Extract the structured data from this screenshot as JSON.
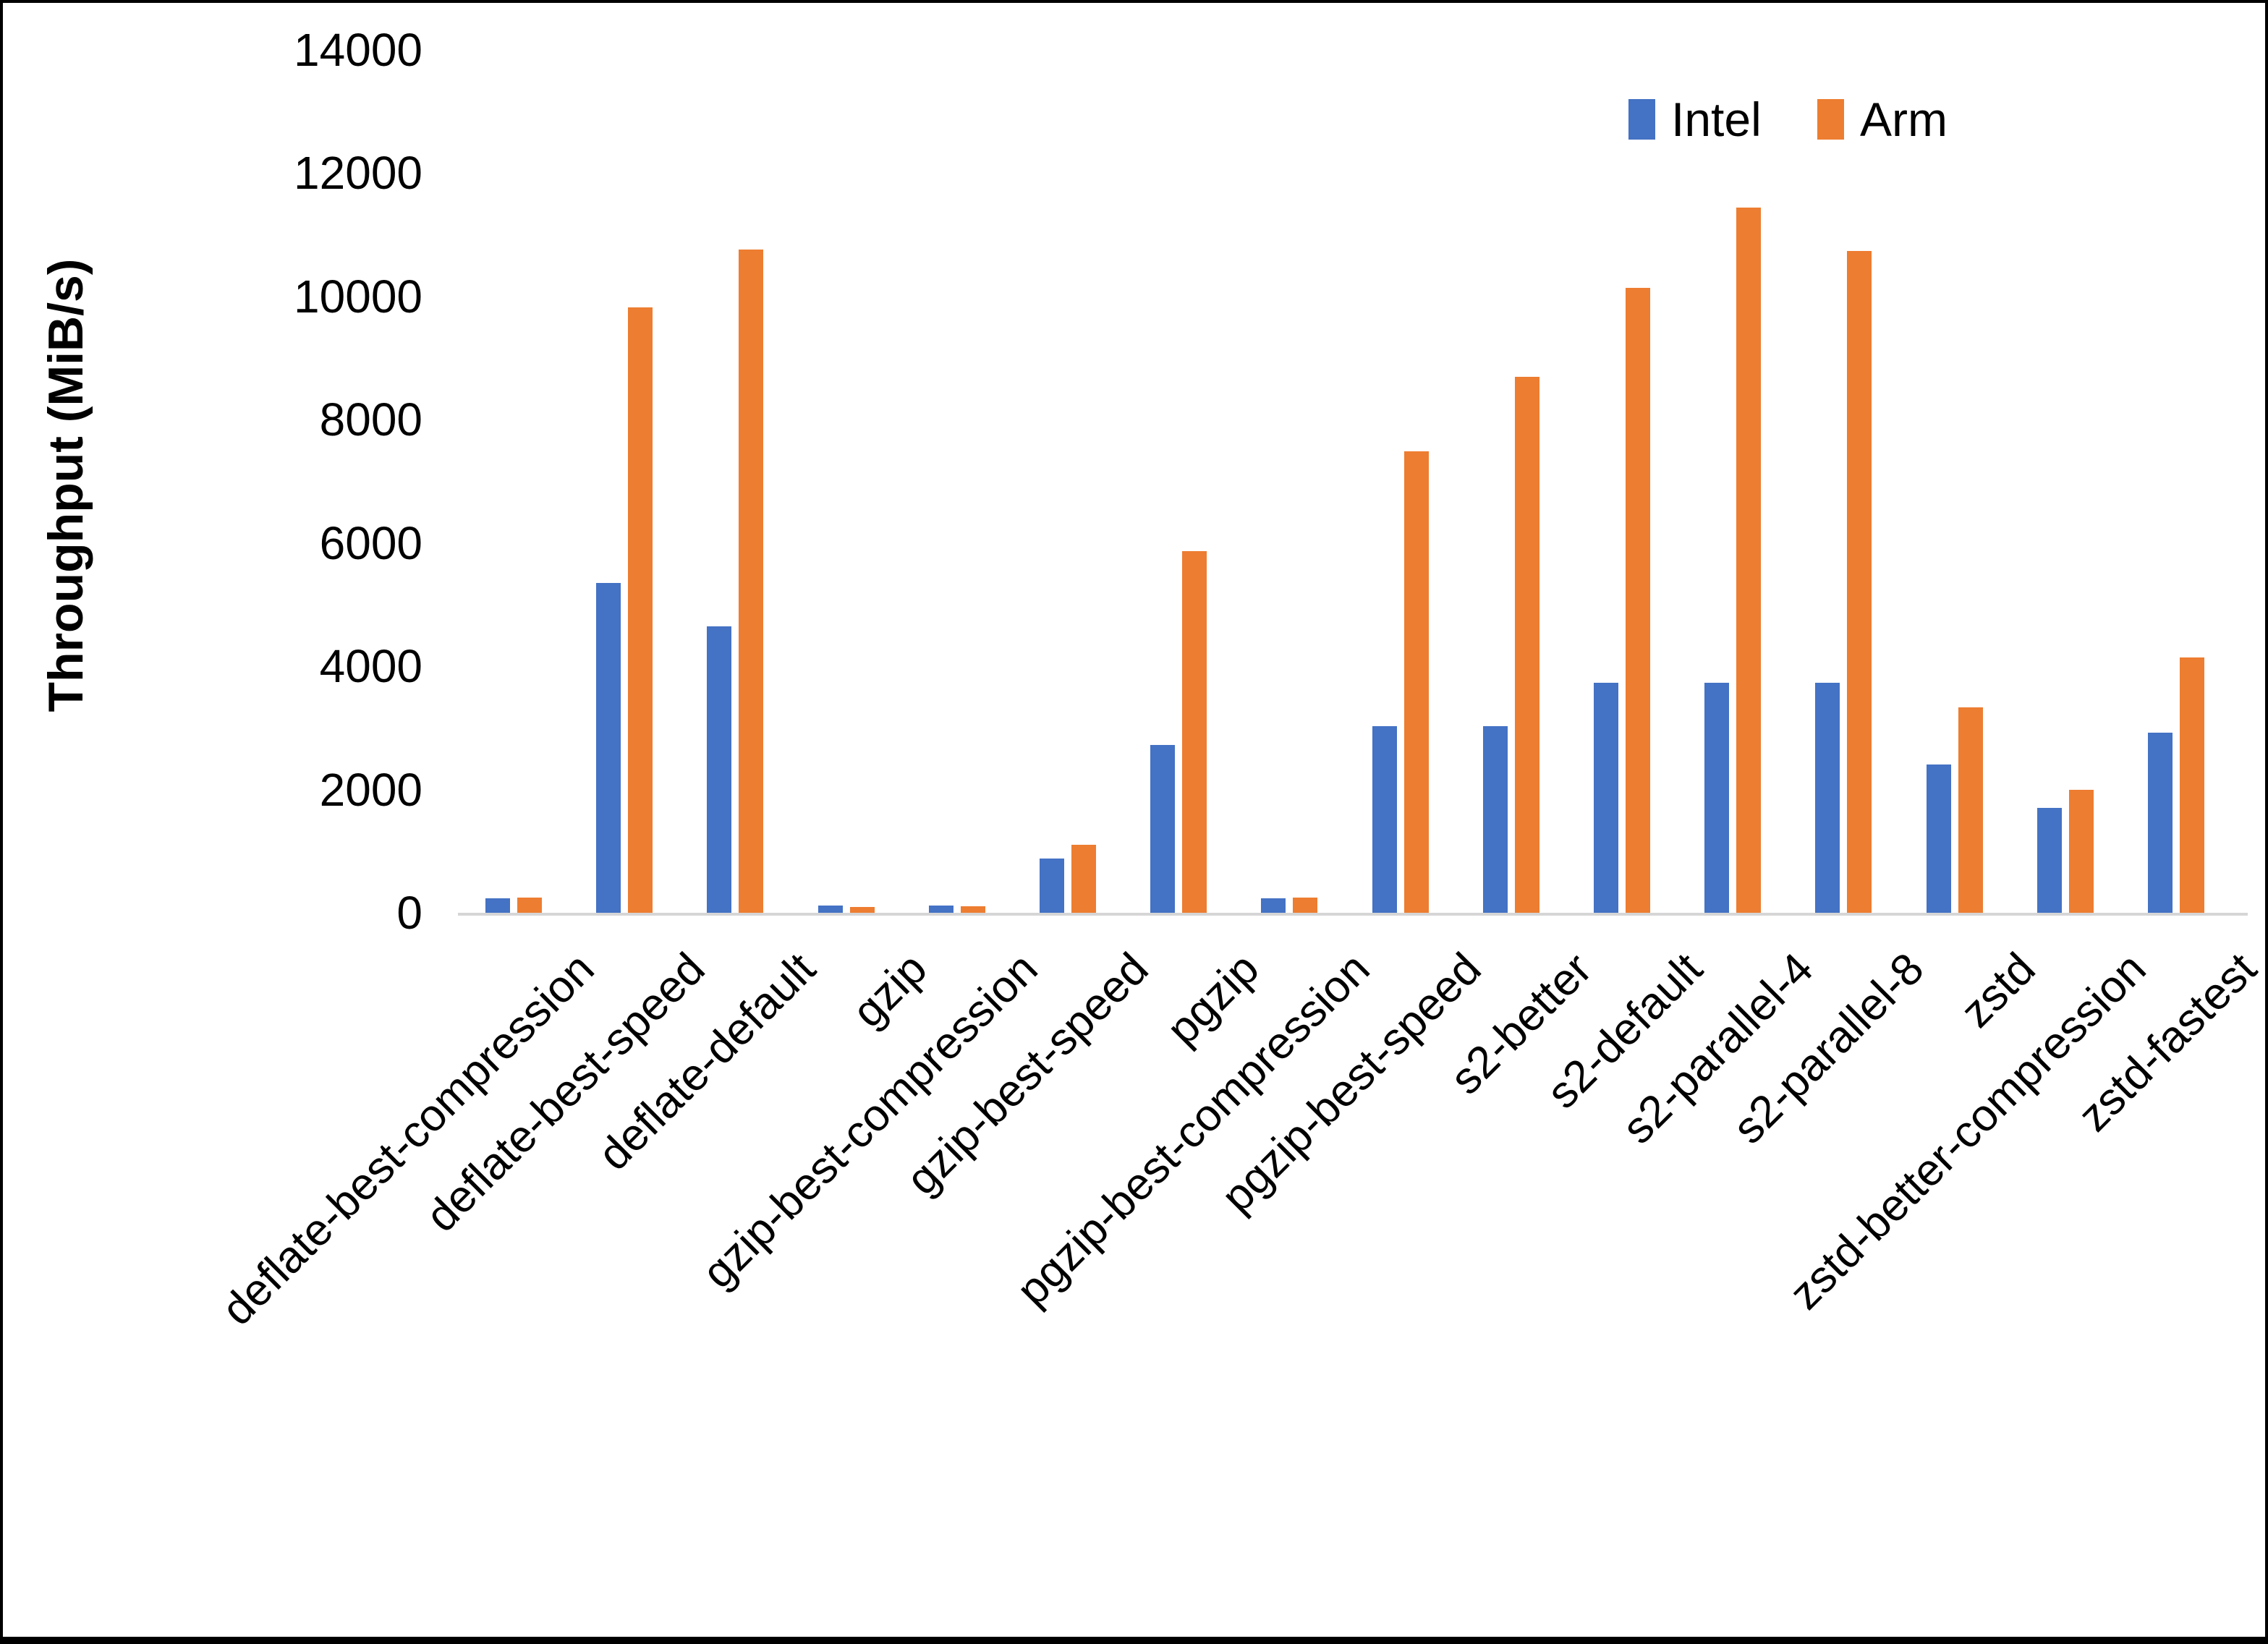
{
  "chart_data": {
    "type": "bar",
    "title": "",
    "xlabel": "",
    "ylabel": "Throughput (MiB/s)",
    "ylim": [
      0,
      14000
    ],
    "ytick_step": 2000,
    "grid": false,
    "legend_position": "top-right",
    "categories": [
      "deflate-best-compression",
      "deflate-best-speed",
      "deflate-default",
      "gzip",
      "gzip-best-compression",
      "gzip-best-speed",
      "pgzip",
      "pgzip-best-compression",
      "pgzip-best-speed",
      "s2-better",
      "s2-default",
      "s2-parallel-4",
      "s2-parallel-8",
      "zstd",
      "zstd-better-compression",
      "zstd-fastest"
    ],
    "series": [
      {
        "name": "Intel",
        "color": "#4472C4",
        "values": [
          240,
          5345,
          4640,
          120,
          115,
          885,
          2725,
          230,
          3030,
          3030,
          3735,
          3735,
          3735,
          2410,
          1700,
          2920
        ]
      },
      {
        "name": "Arm",
        "color": "#ED7D31",
        "values": [
          245,
          9820,
          10760,
          90,
          100,
          1105,
          5865,
          250,
          7480,
          8690,
          10130,
          11440,
          10730,
          3330,
          2000,
          4140
        ]
      }
    ]
  },
  "axis": {
    "y_ticks": [
      "0",
      "2000",
      "4000",
      "6000",
      "8000",
      "10000",
      "12000",
      "14000"
    ]
  }
}
